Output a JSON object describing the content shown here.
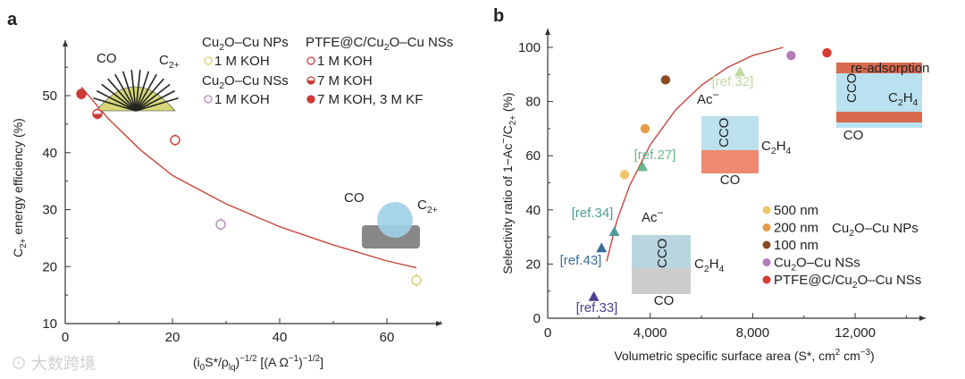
{
  "chart_data": [
    {
      "panel": "a",
      "type": "scatter",
      "xlabel": "(i0S*/ρlq)^−1/2 [(A Ω^−1)^−1/2]",
      "ylabel": "C2+ energy efficiency (%)",
      "xlim": [
        0,
        70
      ],
      "ylim": [
        10,
        57
      ],
      "xticks": [
        0,
        20,
        40,
        60
      ],
      "yticks": [
        10,
        20,
        30,
        40,
        50
      ],
      "legend_headers": [
        "Cu2O–Cu NPs",
        "Cu2O–Cu NSs",
        "PTFE@C/Cu2O–Cu NSs"
      ],
      "series": [
        {
          "name": "1 M KOH",
          "group": "Cu2O–Cu NPs",
          "color": "#d9cf6a",
          "fill": "open",
          "points": [
            [
              65.5,
              17.6
            ]
          ]
        },
        {
          "name": "1 M KOH",
          "group": "Cu2O–Cu NSs",
          "color": "#b58ab5",
          "fill": "open",
          "points": [
            [
              29,
              27.4
            ]
          ]
        },
        {
          "name": "1 M KOH",
          "group": "PTFE@C/Cu2O–Cu NSs",
          "color": "#cc3b35",
          "fill": "open",
          "points": [
            [
              20.5,
              42.2
            ]
          ]
        },
        {
          "name": "7 M KOH",
          "group": "PTFE@C/Cu2O–Cu NSs",
          "color": "#cc3b35",
          "fill": "half",
          "points": [
            [
              6,
              46.8
            ]
          ]
        },
        {
          "name": "7 M KOH, 3 M KF",
          "group": "PTFE@C/Cu2O–Cu NSs",
          "color": "#cc3b35",
          "fill": "full",
          "points": [
            [
              3,
              50.3
            ]
          ]
        }
      ],
      "fit_curve": [
        [
          3,
          51.5
        ],
        [
          8,
          46
        ],
        [
          14,
          40.5
        ],
        [
          20,
          36
        ],
        [
          30,
          31
        ],
        [
          40,
          27
        ],
        [
          50,
          23.8
        ],
        [
          60,
          21
        ],
        [
          65.5,
          19.8
        ]
      ],
      "annotations": [
        "CO",
        "C2+",
        "CO",
        "C2+"
      ]
    },
    {
      "panel": "b",
      "type": "scatter",
      "xlabel": "Volumetric specific surface area (S*, cm2 cm−3)",
      "ylabel": "Selectivity ratio of 1−Ac−/C2+ (%)",
      "xlim": [
        0,
        14800
      ],
      "ylim": [
        0,
        105
      ],
      "xticks": [
        0,
        4000,
        8000,
        12000
      ],
      "xtick_labels": [
        "0",
        "4,000",
        "8,000",
        "12,000"
      ],
      "yticks": [
        0,
        20,
        40,
        60,
        80,
        100
      ],
      "series": [
        {
          "name": "500 nm",
          "color": "#efc46a",
          "points": [
            [
              3000,
              53
            ]
          ]
        },
        {
          "name": "200 nm",
          "color": "#e79a4a",
          "points": [
            [
              3800,
              70
            ]
          ]
        },
        {
          "name": "100 nm",
          "color": "#8a4a22",
          "points": [
            [
              4600,
              88
            ]
          ]
        },
        {
          "name": "Cu2O–Cu NSs",
          "color": "#b57ab8",
          "points": [
            [
              9500,
              97
            ]
          ]
        },
        {
          "name": "PTFE@C/Cu2O–Cu NSs",
          "color": "#d53a33",
          "points": [
            [
              10900,
              98
            ]
          ]
        }
      ],
      "legend_group_label": "Cu2O–Cu NPs",
      "references": [
        {
          "label": "[ref.33]",
          "color": "#4b3f8f",
          "point": [
            1800,
            8
          ]
        },
        {
          "label": "[ref.43]",
          "color": "#3a6c9c",
          "point": [
            2100,
            26
          ]
        },
        {
          "label": "[ref.34]",
          "color": "#4c9c98",
          "point": [
            2600,
            32
          ]
        },
        {
          "label": "[ref.27]",
          "color": "#6bb88c",
          "point": [
            3700,
            56
          ]
        },
        {
          "label": "[ref.32]",
          "color": "#bcd9a0",
          "point": [
            7500,
            91
          ]
        }
      ],
      "fit_curve": [
        [
          2300,
          21
        ],
        [
          2700,
          36
        ],
        [
          3200,
          49
        ],
        [
          4000,
          64
        ],
        [
          5000,
          77
        ],
        [
          6000,
          86
        ],
        [
          7000,
          92.5
        ],
        [
          8000,
          97
        ],
        [
          9200,
          100
        ]
      ],
      "annotations": {
        "ac": "Ac−",
        "cco": "CCO",
        "c2h4": "C2H4",
        "co": "CO",
        "readsorption": "re-adsorption"
      }
    }
  ],
  "watermark": "大数跨境"
}
